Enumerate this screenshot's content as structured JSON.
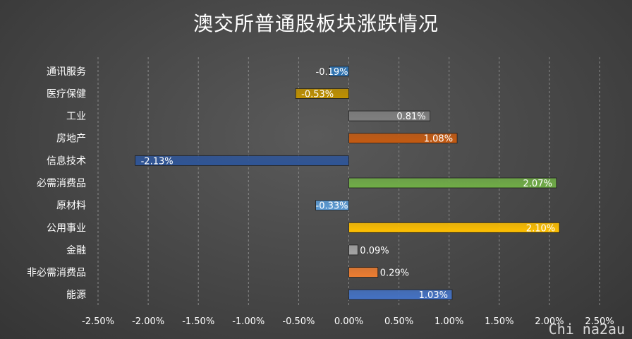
{
  "chart_data": {
    "type": "bar",
    "orientation": "horizontal",
    "title": "澳交所普通股板块涨跌情况",
    "xlabel": "",
    "ylabel": "",
    "xlim": [
      -0.025,
      0.025
    ],
    "x_ticks": [
      "-2.50%",
      "-2.00%",
      "-1.50%",
      "-1.00%",
      "-0.50%",
      "0.00%",
      "0.50%",
      "1.00%",
      "1.50%",
      "2.00%",
      "2.50%"
    ],
    "grid": "vertical-dashed",
    "categories": [
      "通讯服务",
      "医疗保健",
      "工业",
      "房地产",
      "信息技术",
      "必需消费品",
      "原材料",
      "公用事业",
      "金融",
      "非必需消费品",
      "能源"
    ],
    "values": [
      -0.0019,
      -0.0053,
      0.0081,
      0.0108,
      -0.0213,
      0.0207,
      -0.0033,
      0.021,
      0.0009,
      0.0029,
      0.0103
    ],
    "data_labels": [
      "-0.19%",
      "-0.53%",
      "0.81%",
      "1.08%",
      "-2.13%",
      "2.07%",
      "-0.33%",
      "2.10%",
      "0.09%",
      "0.29%",
      "1.03%"
    ],
    "colors": [
      "#2e75b6",
      "#bf9000",
      "#7f7f7f",
      "#c55a11",
      "#2f5597",
      "#70ad47",
      "#5b9bd5",
      "#ffc000",
      "#a5a5a5",
      "#ed7d31",
      "#4472c4"
    ]
  },
  "watermark": "Chi na2au"
}
